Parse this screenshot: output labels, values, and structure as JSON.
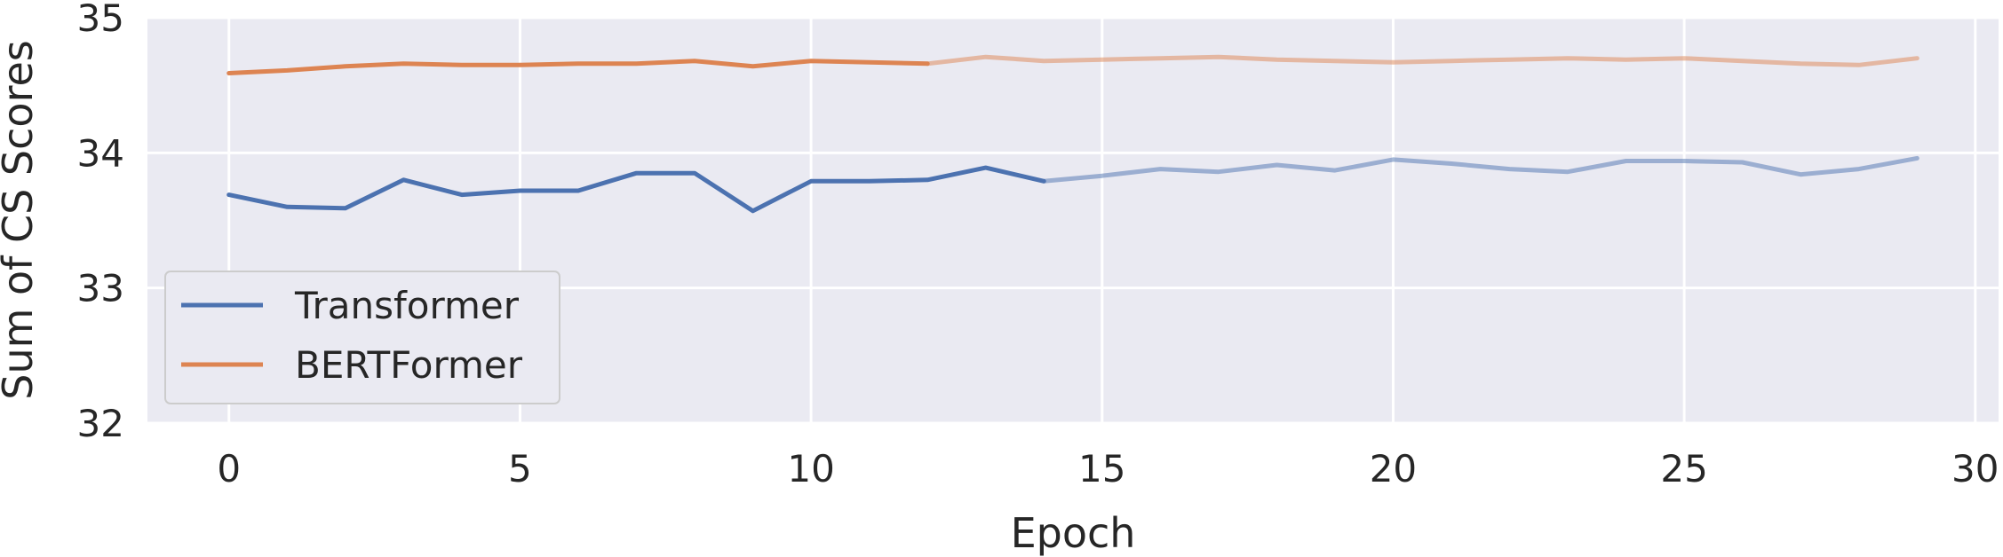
{
  "chart_data": {
    "type": "line",
    "xlabel": "Epoch",
    "ylabel": "Sum of CS Scores",
    "xlim": [
      -1.4,
      30.4
    ],
    "ylim": [
      32,
      35
    ],
    "xticks": [
      0,
      5,
      10,
      15,
      20,
      25,
      30
    ],
    "yticks": [
      32,
      33,
      34,
      35
    ],
    "grid": true,
    "legend_position": "lower-left",
    "series": [
      {
        "name": "Transformer",
        "color": "#4c72b0",
        "x": [
          0,
          1,
          2,
          3,
          4,
          5,
          6,
          7,
          8,
          9,
          10,
          11,
          12,
          13,
          14,
          15,
          16,
          17,
          18,
          19,
          20,
          21,
          22,
          23,
          24,
          25,
          26,
          27,
          28,
          29
        ],
        "y": [
          33.69,
          33.6,
          33.59,
          33.8,
          33.69,
          33.72,
          33.72,
          33.85,
          33.85,
          33.57,
          33.79,
          33.79,
          33.8,
          33.89,
          33.79,
          33.83,
          33.88,
          33.86,
          33.91,
          33.87,
          33.95,
          33.92,
          33.88,
          33.86,
          33.94,
          33.94,
          33.93,
          33.84,
          33.88,
          33.96
        ],
        "faded_from_x": 14
      },
      {
        "name": "BERTFormer",
        "color": "#dd8452",
        "x": [
          0,
          1,
          2,
          3,
          4,
          5,
          6,
          7,
          8,
          9,
          10,
          11,
          12,
          13,
          14,
          15,
          16,
          17,
          18,
          19,
          20,
          21,
          22,
          23,
          24,
          25,
          26,
          27,
          28,
          29
        ],
        "y": [
          34.59,
          34.61,
          34.64,
          34.66,
          34.65,
          34.65,
          34.66,
          34.66,
          34.68,
          34.64,
          34.68,
          34.67,
          34.66,
          34.71,
          34.68,
          34.69,
          34.7,
          34.71,
          34.69,
          34.68,
          34.67,
          34.68,
          34.69,
          34.7,
          34.69,
          34.7,
          34.68,
          34.66,
          34.65,
          34.7
        ],
        "faded_from_x": 12
      }
    ]
  }
}
